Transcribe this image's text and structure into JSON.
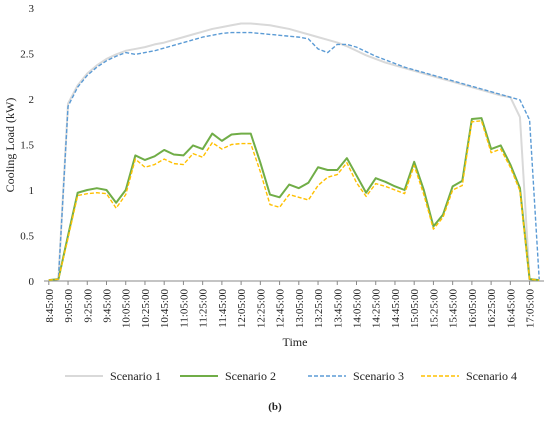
{
  "chart_data": {
    "type": "line",
    "xlabel": "Time",
    "ylabel": "Cooling Load (kW)",
    "caption": "(b)",
    "ylim": [
      0,
      3
    ],
    "yticks": [
      0,
      0.5,
      1,
      1.5,
      2,
      2.5,
      3
    ],
    "ytick_labels": [
      "0",
      "0.5",
      "1",
      "1.5",
      "2",
      "2.5",
      "3"
    ],
    "grid": false,
    "legend_position": "bottom",
    "x": [
      "8:45:00",
      "8:55:00",
      "9:05:00",
      "9:15:00",
      "9:25:00",
      "9:35:00",
      "9:45:00",
      "9:55:00",
      "10:05:00",
      "10:15:00",
      "10:25:00",
      "10:35:00",
      "10:45:00",
      "10:55:00",
      "11:05:00",
      "11:15:00",
      "11:25:00",
      "11:35:00",
      "11:45:00",
      "11:55:00",
      "12:05:00",
      "12:15:00",
      "12:25:00",
      "12:35:00",
      "12:45:00",
      "12:55:00",
      "13:05:00",
      "13:15:00",
      "13:25:00",
      "13:35:00",
      "13:45:00",
      "13:55:00",
      "14:05:00",
      "14:15:00",
      "14:25:00",
      "14:35:00",
      "14:45:00",
      "14:55:00",
      "15:05:00",
      "15:15:00",
      "15:25:00",
      "15:35:00",
      "15:45:00",
      "15:55:00",
      "16:05:00",
      "16:15:00",
      "16:25:00",
      "16:35:00",
      "16:45:00",
      "16:55:00",
      "17:05:00",
      "17:15:00"
    ],
    "x_tick_labels": [
      "8:45:00",
      "9:05:00",
      "9:25:00",
      "9:45:00",
      "10:05:00",
      "10:25:00",
      "10:45:00",
      "11:05:00",
      "11:25:00",
      "11:45:00",
      "12:05:00",
      "12:25:00",
      "12:45:00",
      "13:05:00",
      "13:25:00",
      "13:45:00",
      "14:05:00",
      "14:25:00",
      "14:45:00",
      "15:05:00",
      "15:25:00",
      "15:45:00",
      "16:05:00",
      "16:25:00",
      "16:45:00",
      "17:05:00"
    ],
    "series": [
      {
        "name": "Scenario 1",
        "color": "#d9d9d9",
        "dash": "solid",
        "values": [
          0.01,
          0.02,
          1.95,
          2.15,
          2.28,
          2.37,
          2.44,
          2.49,
          2.53,
          2.55,
          2.57,
          2.6,
          2.62,
          2.65,
          2.68,
          2.71,
          2.74,
          2.77,
          2.79,
          2.81,
          2.83,
          2.83,
          2.82,
          2.81,
          2.79,
          2.77,
          2.74,
          2.71,
          2.68,
          2.65,
          2.62,
          2.58,
          2.53,
          2.48,
          2.44,
          2.4,
          2.37,
          2.34,
          2.31,
          2.28,
          2.25,
          2.22,
          2.19,
          2.16,
          2.13,
          2.1,
          2.07,
          2.04,
          2.02,
          1.8,
          0.02,
          0.01
        ]
      },
      {
        "name": "Scenario 2",
        "color": "#70ad47",
        "dash": "solid",
        "values": [
          0.01,
          0.02,
          0.5,
          0.97,
          1.0,
          1.02,
          1.0,
          0.86,
          1.0,
          1.38,
          1.33,
          1.37,
          1.44,
          1.39,
          1.38,
          1.49,
          1.45,
          1.62,
          1.54,
          1.61,
          1.62,
          1.62,
          1.3,
          0.95,
          0.92,
          1.06,
          1.02,
          1.08,
          1.25,
          1.22,
          1.22,
          1.35,
          1.16,
          0.97,
          1.13,
          1.09,
          1.04,
          1.0,
          1.31,
          1.0,
          0.6,
          0.73,
          1.04,
          1.1,
          1.78,
          1.79,
          1.45,
          1.49,
          1.28,
          1.02,
          0.02,
          0.01
        ]
      },
      {
        "name": "Scenario 3",
        "color": "#5b9bd5",
        "dash": "dash",
        "values": [
          0.01,
          0.02,
          1.92,
          2.13,
          2.26,
          2.35,
          2.42,
          2.47,
          2.51,
          2.49,
          2.51,
          2.53,
          2.56,
          2.59,
          2.62,
          2.65,
          2.68,
          2.7,
          2.72,
          2.73,
          2.73,
          2.73,
          2.72,
          2.71,
          2.7,
          2.69,
          2.68,
          2.66,
          2.55,
          2.51,
          2.6,
          2.6,
          2.57,
          2.52,
          2.47,
          2.43,
          2.39,
          2.35,
          2.32,
          2.29,
          2.26,
          2.23,
          2.2,
          2.17,
          2.14,
          2.11,
          2.08,
          2.05,
          2.02,
          1.99,
          1.77,
          0.02
        ]
      },
      {
        "name": "Scenario 4",
        "color": "#ffc000",
        "dash": "dash",
        "values": [
          0.01,
          0.02,
          0.47,
          0.94,
          0.96,
          0.97,
          0.96,
          0.8,
          0.95,
          1.34,
          1.25,
          1.28,
          1.34,
          1.29,
          1.28,
          1.4,
          1.36,
          1.52,
          1.45,
          1.5,
          1.51,
          1.51,
          1.2,
          0.84,
          0.81,
          0.95,
          0.92,
          0.89,
          1.05,
          1.14,
          1.17,
          1.3,
          1.08,
          0.93,
          1.07,
          1.04,
          1.0,
          0.96,
          1.27,
          0.95,
          0.57,
          0.7,
          1.0,
          1.05,
          1.75,
          1.76,
          1.41,
          1.45,
          1.25,
          0.99,
          0.02,
          0.01
        ]
      }
    ]
  }
}
